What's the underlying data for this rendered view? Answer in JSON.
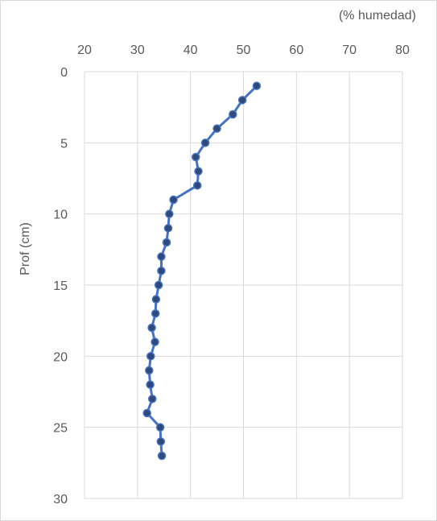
{
  "chart_data": {
    "type": "line",
    "title": "",
    "xlabel": "(% humedad)",
    "ylabel": "Prof (cm)",
    "x_axis_position": "top",
    "y_axis_inverted": true,
    "xlim": [
      20,
      80
    ],
    "ylim": [
      0,
      30
    ],
    "x_ticks": [
      20,
      30,
      40,
      50,
      60,
      70,
      80
    ],
    "y_ticks": [
      0,
      5,
      10,
      15,
      20,
      25,
      30
    ],
    "grid": true,
    "legend": "none",
    "series": [
      {
        "color": "#4472c4",
        "marker_color": "#2f4a7a",
        "points": [
          {
            "x": 52.5,
            "y": 1
          },
          {
            "x": 49.8,
            "y": 2
          },
          {
            "x": 48.0,
            "y": 3
          },
          {
            "x": 45.0,
            "y": 4
          },
          {
            "x": 42.8,
            "y": 5
          },
          {
            "x": 41.0,
            "y": 6
          },
          {
            "x": 41.5,
            "y": 7
          },
          {
            "x": 41.3,
            "y": 8
          },
          {
            "x": 36.8,
            "y": 9
          },
          {
            "x": 36.0,
            "y": 10
          },
          {
            "x": 35.8,
            "y": 11
          },
          {
            "x": 35.5,
            "y": 12
          },
          {
            "x": 34.5,
            "y": 13
          },
          {
            "x": 34.5,
            "y": 14
          },
          {
            "x": 34.0,
            "y": 15
          },
          {
            "x": 33.5,
            "y": 16
          },
          {
            "x": 33.4,
            "y": 17
          },
          {
            "x": 32.7,
            "y": 18
          },
          {
            "x": 33.3,
            "y": 19
          },
          {
            "x": 32.5,
            "y": 20
          },
          {
            "x": 32.2,
            "y": 21
          },
          {
            "x": 32.4,
            "y": 22
          },
          {
            "x": 32.8,
            "y": 23
          },
          {
            "x": 31.8,
            "y": 24
          },
          {
            "x": 34.3,
            "y": 25
          },
          {
            "x": 34.4,
            "y": 26
          },
          {
            "x": 34.6,
            "y": 27
          }
        ]
      }
    ]
  }
}
